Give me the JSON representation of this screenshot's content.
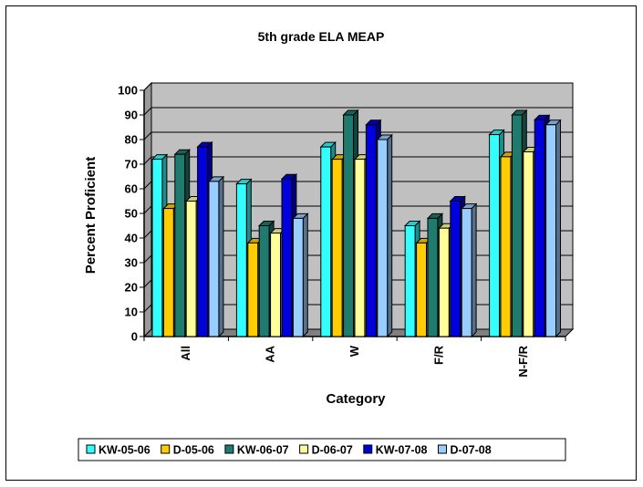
{
  "chart_data": {
    "type": "bar",
    "title": "5th grade ELA MEAP",
    "xlabel": "Category",
    "ylabel": "Percent Proficient",
    "categories": [
      "All",
      "AA",
      "W",
      "F/R",
      "N-F/R"
    ],
    "ylim": [
      0,
      100
    ],
    "yticks": [
      "0",
      "10",
      "20",
      "30",
      "40",
      "50",
      "60",
      "70",
      "80",
      "90",
      "100"
    ],
    "grid": true,
    "legend_position": "bottom",
    "series": [
      {
        "name": "KW-05-06",
        "color": "#33ffff",
        "values": [
          72,
          62,
          77,
          45,
          82
        ]
      },
      {
        "name": "D-05-06",
        "color": "#ffcc00",
        "values": [
          52,
          38,
          72,
          38,
          73
        ]
      },
      {
        "name": "KW-06-07",
        "color": "#1f7b6e",
        "values": [
          74,
          45,
          90,
          48,
          90
        ]
      },
      {
        "name": "D-06-07",
        "color": "#ffff99",
        "values": [
          55,
          42,
          72,
          44,
          75
        ]
      },
      {
        "name": "KW-07-08",
        "color": "#0000dd",
        "values": [
          77,
          64,
          86,
          55,
          88
        ]
      },
      {
        "name": "D-07-08",
        "color": "#99ccff",
        "values": [
          63,
          48,
          80,
          52,
          86
        ]
      }
    ]
  }
}
